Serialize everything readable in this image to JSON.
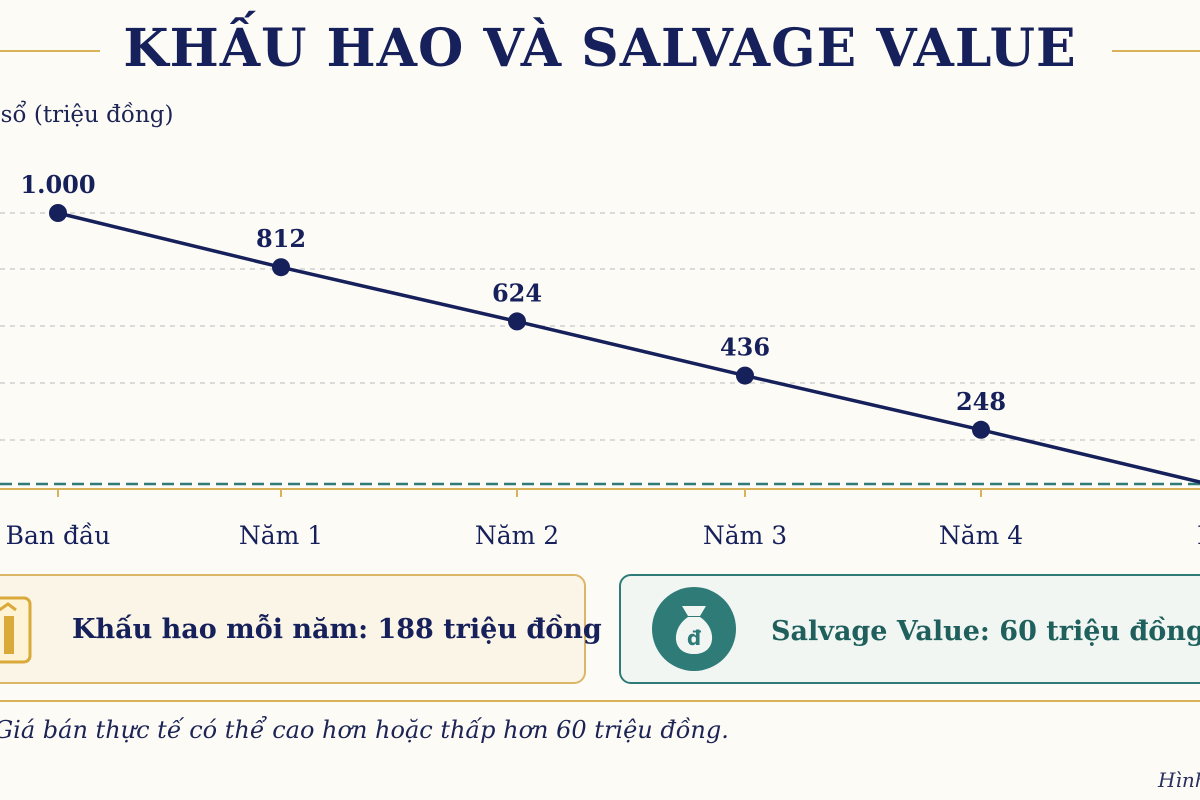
{
  "title": "KHẤU HAO VÀ SALVAGE VALUE",
  "chart_data": {
    "type": "line",
    "ylabel": "i sổ (triệu đồng)",
    "categories": [
      "Ban đầu",
      "Năm 1",
      "Năm 2",
      "Năm 3",
      "Năm 4",
      "N"
    ],
    "value_labels": [
      "1.000",
      "812",
      "624",
      "436",
      "248"
    ],
    "series": [
      {
        "values": [
          1000,
          812,
          624,
          436,
          248,
          60
        ]
      }
    ],
    "salvage_value": 60,
    "ylim": [
      60,
      1000
    ],
    "grid": true,
    "line_color": "#16205a",
    "salvage_line_color": "#2f7b78"
  },
  "depreciation_box": {
    "text": "Khấu hao mỗi năm: 188 triệu đồng",
    "icon": "gold-bars-icon"
  },
  "salvage_box": {
    "text": "Salvage Value: 60 triệu đồng",
    "icon": "money-bag-icon",
    "icon_glyph": "đ"
  },
  "note": "Giá bán thực tế có thể cao hơn hoặc thấp hơn 60 triệu đồng.",
  "figure_label": "Hình"
}
